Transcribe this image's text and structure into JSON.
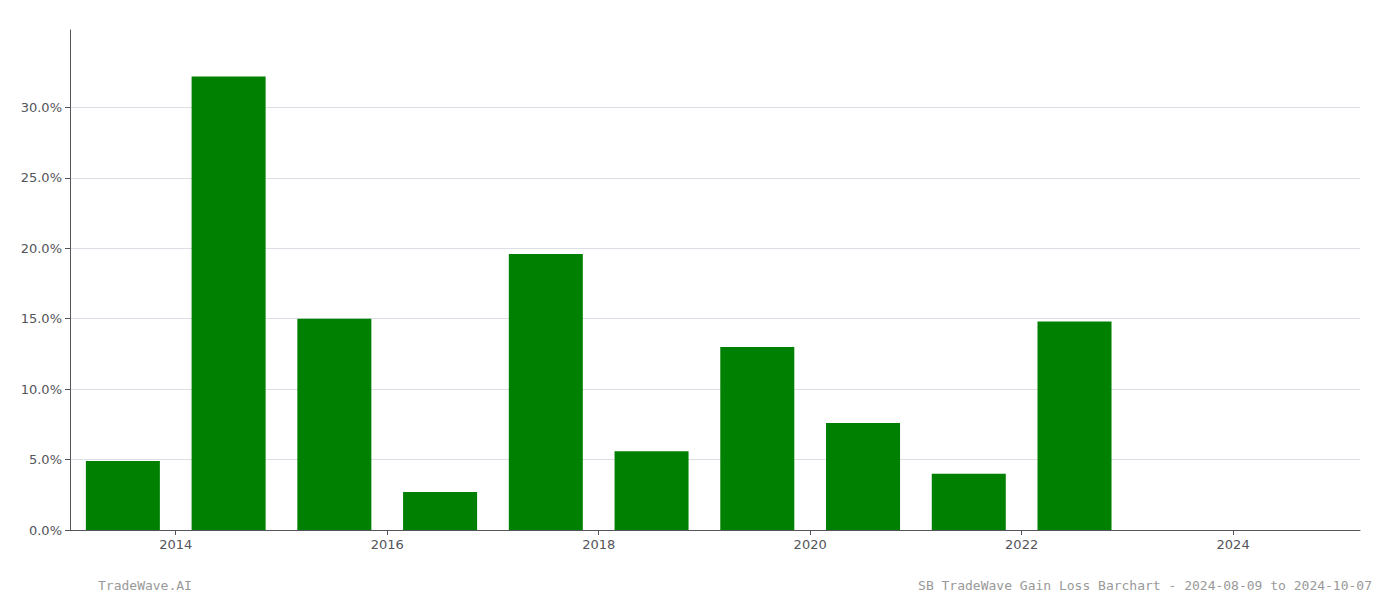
{
  "chart_data": {
    "type": "bar",
    "x": [
      2013.5,
      2014.5,
      2015.5,
      2016.5,
      2017.5,
      2018.5,
      2019.5,
      2020.5,
      2021.5,
      2022.5,
      2023.5
    ],
    "values": [
      0.049,
      0.322,
      0.15,
      0.027,
      0.196,
      0.056,
      0.13,
      0.076,
      0.04,
      0.148,
      0.0
    ],
    "color": "#008000",
    "xlim": [
      2013.0,
      2025.2
    ],
    "xticks": [
      2014,
      2016,
      2018,
      2020,
      2022,
      2024
    ],
    "ylim": [
      0,
      0.355
    ],
    "yticks": [
      {
        "value": 0.0,
        "label": "0.0%"
      },
      {
        "value": 0.05,
        "label": "5.0%"
      },
      {
        "value": 0.1,
        "label": "10.0%"
      },
      {
        "value": 0.15,
        "label": "15.0%"
      },
      {
        "value": 0.2,
        "label": "20.0%"
      },
      {
        "value": 0.25,
        "label": "25.0%"
      },
      {
        "value": 0.3,
        "label": "30.0%"
      }
    ],
    "grid": true,
    "annotations": [
      "TradeWave.AI",
      "SB TradeWave Gain Loss Barchart - 2024-08-09 to 2024-10-07"
    ]
  }
}
